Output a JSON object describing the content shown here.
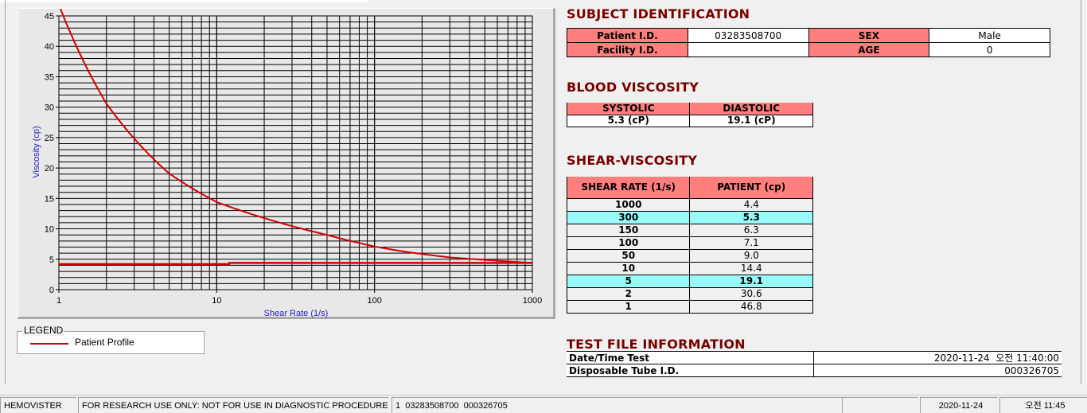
{
  "chart_data": {
    "type": "line",
    "title": "",
    "xlabel": "Shear Rate (1/s)",
    "ylabel": "Viscosity (cp)",
    "xscale": "log",
    "xlim": [
      1,
      1000
    ],
    "ylim": [
      0,
      45
    ],
    "xticks": [
      "1",
      "10",
      "100",
      "1000"
    ],
    "yticks": [
      "0",
      "5",
      "10",
      "15",
      "20",
      "25",
      "30",
      "35",
      "40",
      "45"
    ],
    "grid": true,
    "color": "#d40000",
    "series": [
      {
        "name": "Patient Profile",
        "x": [
          1,
          2,
          5,
          10,
          50,
          100,
          150,
          300,
          1000
        ],
        "y": [
          46.8,
          30.6,
          19.1,
          14.4,
          9.0,
          7.1,
          6.3,
          5.3,
          4.4
        ]
      },
      {
        "x": [
          1,
          12,
          12,
          1000
        ],
        "y": [
          4.2,
          4.2,
          4.4,
          4.4
        ]
      }
    ]
  },
  "legend": {
    "title": "LEGEND",
    "items": [
      {
        "label": "Patient Profile",
        "color": "#d40000"
      }
    ]
  },
  "subject": {
    "title": "SUBJECT IDENTIFICATION",
    "patient_id_label": "Patient I.D.",
    "patient_id": "03283508700",
    "sex_label": "SEX",
    "sex": "Male",
    "facility_label": "Facility I.D.",
    "facility": "",
    "age_label": "AGE",
    "age": "0"
  },
  "blood": {
    "title": "BLOOD VISCOSITY",
    "systolic_label": "SYSTOLIC",
    "diastolic_label": "DIASTOLIC",
    "systolic": "5.3 (cP)",
    "diastolic": "19.1 (cP)"
  },
  "shear": {
    "title": "SHEAR-VISCOSITY",
    "headers": [
      "SHEAR RATE (1/s)",
      "PATIENT (cp)"
    ],
    "rows": [
      {
        "rate": "1000",
        "value": "4.4",
        "highlight": false
      },
      {
        "rate": "300",
        "value": "5.3",
        "highlight": true
      },
      {
        "rate": "150",
        "value": "6.3",
        "highlight": false
      },
      {
        "rate": "100",
        "value": "7.1",
        "highlight": false
      },
      {
        "rate": "50",
        "value": "9.0",
        "highlight": false
      },
      {
        "rate": "10",
        "value": "14.4",
        "highlight": false
      },
      {
        "rate": "5",
        "value": "19.1",
        "highlight": true
      },
      {
        "rate": "2",
        "value": "30.6",
        "highlight": false
      },
      {
        "rate": "1",
        "value": "46.8",
        "highlight": false
      }
    ],
    "highlight_color": "#99f9f9"
  },
  "testfile": {
    "title": "TEST FILE INFORMATION",
    "date_label": "Date/Time Test",
    "date": "2020-11-24  오전 11:40:00",
    "tube_label": "Disposable Tube I.D.",
    "tube": "000326705"
  },
  "statusbar": {
    "app": "HEMOVISTER",
    "notice": "FOR RESEARCH USE ONLY: NOT FOR USE IN DIAGNOSTIC PROCEDURES",
    "record": "1  03283508700  000326705",
    "empty": "",
    "date": "2020-11-24",
    "time": "오전 11:45"
  }
}
